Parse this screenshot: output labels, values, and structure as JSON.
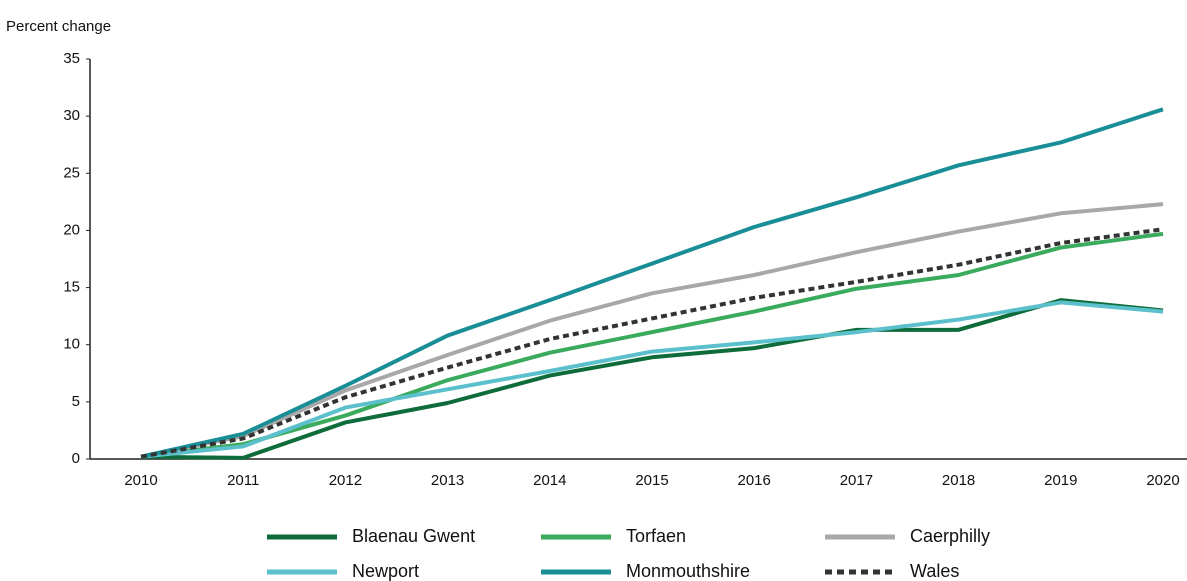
{
  "chart_data": {
    "type": "line",
    "y_axis_label": "Percent change",
    "categories": [
      "2010",
      "2011",
      "2012",
      "2013",
      "2014",
      "2015",
      "2016",
      "2017",
      "2018",
      "2019",
      "2020"
    ],
    "series": [
      {
        "name": "Blaenau Gwent",
        "color": "#0e6b3a",
        "line_style": "solid",
        "values": [
          0.2,
          0.1,
          3.2,
          4.9,
          7.3,
          8.9,
          9.7,
          11.3,
          11.3,
          13.9,
          13.0
        ]
      },
      {
        "name": "Torfaen",
        "color": "#3aaa5c",
        "line_style": "solid",
        "values": [
          0.2,
          1.3,
          3.8,
          6.9,
          9.3,
          11.1,
          12.9,
          14.9,
          16.1,
          18.5,
          19.7
        ]
      },
      {
        "name": "Caerphilly",
        "color": "#a8a8a8",
        "line_style": "solid",
        "values": [
          0.2,
          2.0,
          6.0,
          9.1,
          12.1,
          14.5,
          16.1,
          18.1,
          19.9,
          21.5,
          22.3
        ]
      },
      {
        "name": "Newport",
        "color": "#5bc0cc",
        "line_style": "solid",
        "values": [
          0.2,
          1.1,
          4.5,
          6.1,
          7.7,
          9.4,
          10.2,
          11.1,
          12.2,
          13.7,
          12.9
        ]
      },
      {
        "name": "Monmouthshire",
        "color": "#1a8e96",
        "line_style": "solid",
        "values": [
          0.2,
          2.2,
          6.4,
          10.8,
          13.9,
          17.1,
          20.3,
          22.9,
          25.7,
          27.7,
          30.6
        ]
      },
      {
        "name": "Wales",
        "color": "#333333",
        "line_style": "dashed",
        "values": [
          0.2,
          1.8,
          5.4,
          8.0,
          10.5,
          12.3,
          14.1,
          15.5,
          17.0,
          18.9,
          20.1
        ]
      }
    ],
    "ylim": [
      0,
      35
    ],
    "yticks": [
      0,
      5,
      10,
      15,
      20,
      25,
      30,
      35
    ],
    "grid": false
  }
}
